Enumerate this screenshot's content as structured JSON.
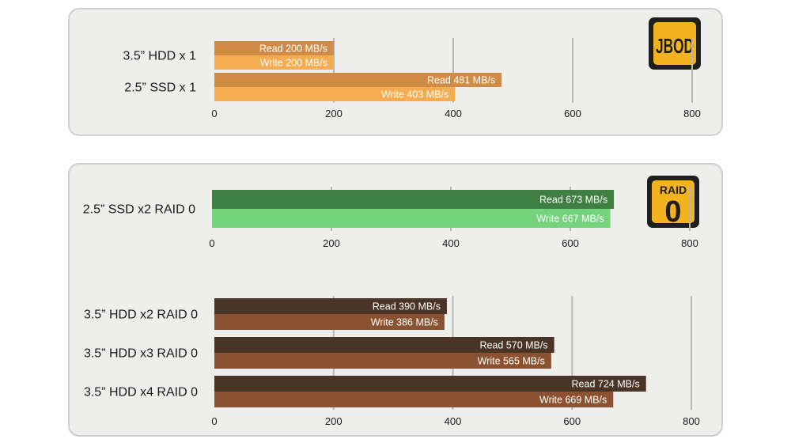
{
  "colors": {
    "hdd_jbod_read": "#d08c45",
    "hdd_jbod_write": "#f5ab50",
    "ssd_raid_read": "#3f7f42",
    "ssd_raid_write": "#74d37c",
    "hdd_raid_read": "#4a3426",
    "hdd_raid_write": "#8a5230",
    "badge_bg": "#1e1e1e",
    "badge_fill": "#f2b31f"
  },
  "chart_data": [
    {
      "type": "bar",
      "orientation": "horizontal",
      "badge": "JBOD",
      "categories": [
        "3.5” HDD x 1",
        "2.5” SSD x 1"
      ],
      "series": [
        {
          "name": "Read",
          "values": [
            200,
            481
          ],
          "labels": [
            "Read 200 MB/s",
            "Read 481 MB/s"
          ]
        },
        {
          "name": "Write",
          "values": [
            200,
            403
          ],
          "labels": [
            "Write 200 MB/s",
            "Write 403 MB/s"
          ]
        }
      ],
      "xlim": [
        0,
        800
      ],
      "xticks": [
        "0",
        "200",
        "400",
        "600",
        "800"
      ],
      "unit": "MB/s",
      "grid": true
    },
    {
      "type": "bar",
      "orientation": "horizontal",
      "badge": "RAID 0",
      "categories": [
        "2.5” SSD x2 RAID 0"
      ],
      "series": [
        {
          "name": "Read",
          "values": [
            673
          ],
          "labels": [
            "Read 673 MB/s"
          ]
        },
        {
          "name": "Write",
          "values": [
            667
          ],
          "labels": [
            "Write 667 MB/s"
          ]
        }
      ],
      "xlim": [
        0,
        800
      ],
      "xticks": [
        "0",
        "200",
        "400",
        "600",
        "800"
      ],
      "unit": "MB/s",
      "grid": true
    },
    {
      "type": "bar",
      "orientation": "horizontal",
      "categories": [
        "3.5” HDD x2 RAID 0",
        "3.5” HDD x3 RAID 0",
        "3.5” HDD x4 RAID 0"
      ],
      "series": [
        {
          "name": "Read",
          "values": [
            390,
            570,
            724
          ],
          "labels": [
            "Read 390 MB/s",
            "Read 570 MB/s",
            "Read 724 MB/s"
          ]
        },
        {
          "name": "Write",
          "values": [
            386,
            565,
            669
          ],
          "labels": [
            "Write 386 MB/s",
            "Write 565 MB/s",
            "Write 669 MB/s"
          ]
        }
      ],
      "xlim": [
        0,
        800
      ],
      "xticks": [
        "0",
        "200",
        "400",
        "600",
        "800"
      ],
      "unit": "MB/s",
      "grid": true
    }
  ],
  "badges": {
    "jbod": {
      "text": "JBOD"
    },
    "raid0": {
      "top": "RAID",
      "bottom": "0"
    }
  }
}
